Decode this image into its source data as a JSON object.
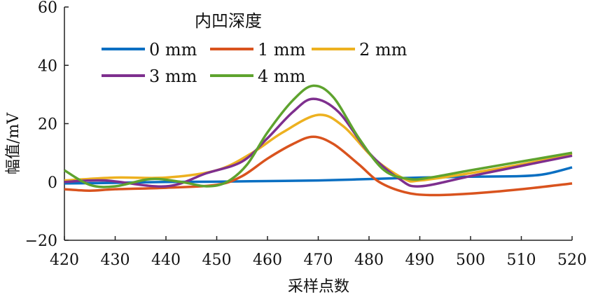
{
  "chart_data": {
    "type": "line",
    "title": "",
    "xlabel": "采样点数",
    "ylabel": "幅值/mV",
    "xlim": [
      420,
      520
    ],
    "ylim": [
      -20,
      60
    ],
    "xticks": [
      420,
      430,
      440,
      450,
      460,
      470,
      480,
      490,
      500,
      510,
      520
    ],
    "yticks": [
      -20,
      0,
      20,
      40,
      60
    ],
    "ytick_labels": [
      "−20",
      "0",
      "20",
      "40",
      "60"
    ],
    "grid": false,
    "legend": {
      "title": "内凹深度",
      "placement": "top-left"
    },
    "series": [
      {
        "name": "0 mm",
        "color": "#0a6fc2",
        "x": [
          420,
          430,
          440,
          450,
          460,
          470,
          480,
          490,
          500,
          510,
          515,
          520
        ],
        "y": [
          -0.5,
          -0.3,
          0,
          0.1,
          0.3,
          0.5,
          1,
          1.5,
          1.8,
          2,
          2.8,
          5
        ]
      },
      {
        "name": "1 mm",
        "color": "#d9531e",
        "x": [
          420,
          425,
          430,
          440,
          450,
          455,
          460,
          465,
          469,
          473,
          478,
          482,
          487,
          492,
          500,
          510,
          520
        ],
        "y": [
          -2.5,
          -3,
          -2.5,
          -2,
          -1,
          2,
          8,
          13,
          15.5,
          13,
          6,
          0,
          -3.5,
          -4.5,
          -4,
          -2.5,
          -0.5
        ]
      },
      {
        "name": "2 mm",
        "color": "#edb120",
        "x": [
          420,
          430,
          440,
          450,
          457,
          463,
          470,
          475,
          481,
          487,
          490,
          500,
          510,
          520
        ],
        "y": [
          0.5,
          1.5,
          1.5,
          4,
          10,
          17,
          23,
          19,
          8,
          1,
          0.5,
          3,
          6,
          9.5
        ]
      },
      {
        "name": "3 mm",
        "color": "#7e2f8e",
        "x": [
          420,
          428,
          440,
          448,
          455,
          460,
          465,
          469,
          474,
          480,
          486,
          490,
          500,
          510,
          520
        ],
        "y": [
          0,
          0.5,
          -1.5,
          3,
          7,
          15,
          24,
          28.5,
          24,
          10,
          1,
          -1.5,
          2,
          5.5,
          9
        ]
      },
      {
        "name": "4 mm",
        "color": "#5ea32e",
        "x": [
          420,
          425,
          430,
          437,
          443,
          448,
          452,
          456,
          460,
          465,
          469,
          473,
          478,
          483,
          488,
          492,
          500,
          510,
          520
        ],
        "y": [
          4,
          -1,
          -1.5,
          1,
          0,
          -1.5,
          0,
          6,
          17,
          28,
          33,
          29,
          15,
          4,
          1,
          1.5,
          4,
          7,
          10
        ]
      }
    ]
  }
}
